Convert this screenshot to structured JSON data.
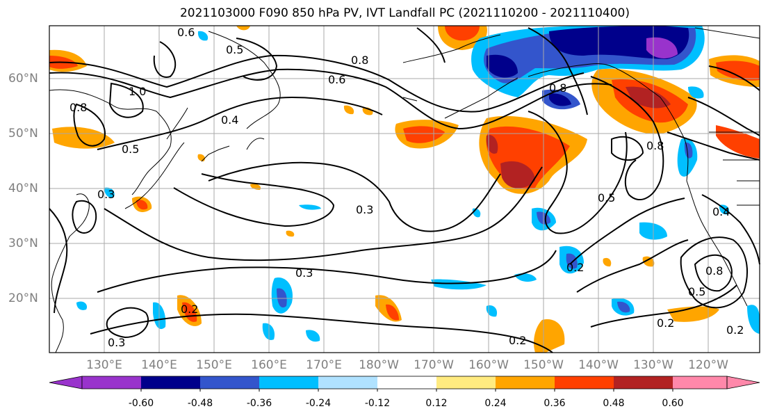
{
  "title": "2021103000 F090 850 hPa PV, IVT Landfall PC (2021110200 - 2021110400)",
  "lat_labels": [
    "60°N",
    "50°N",
    "40°N",
    "30°N",
    "20°N"
  ],
  "lon_labels": [
    "130°E",
    "140°E",
    "150°E",
    "160°E",
    "170°E",
    "180°W",
    "170°W",
    "160°W",
    "150°W",
    "140°W",
    "130°W",
    "120°W"
  ],
  "contour_labels": [
    "0.6",
    "0.5",
    "1.0",
    "0.8",
    "0.8",
    "0.6",
    "0.4",
    "0.5",
    "0.3",
    "0.3",
    "0.3",
    "0.3",
    "0.2",
    "0.2",
    "0.5",
    "0.8",
    "0.8",
    "0.8",
    "0.2",
    "0.5",
    "0.4",
    "0.2",
    "0.2"
  ],
  "colorbar": {
    "ticks": [
      "-0.60",
      "-0.48",
      "-0.36",
      "-0.24",
      "-0.12",
      "0.12",
      "0.24",
      "0.36",
      "0.48",
      "0.60"
    ],
    "colors": [
      "#9933cc",
      "#00008b",
      "#3355cc",
      "#00bfff",
      "#b0e2ff",
      "#ffffff",
      "#ffeb80",
      "#ffa500",
      "#ff4000",
      "#b22222",
      "#ff88aa"
    ]
  }
}
